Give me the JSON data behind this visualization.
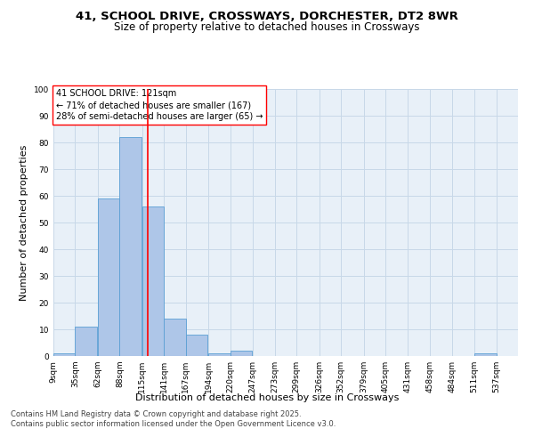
{
  "title_line1": "41, SCHOOL DRIVE, CROSSWAYS, DORCHESTER, DT2 8WR",
  "title_line2": "Size of property relative to detached houses in Crossways",
  "xlabel": "Distribution of detached houses by size in Crossways",
  "ylabel": "Number of detached properties",
  "bin_labels": [
    "9sqm",
    "35sqm",
    "62sqm",
    "88sqm",
    "115sqm",
    "141sqm",
    "167sqm",
    "194sqm",
    "220sqm",
    "247sqm",
    "273sqm",
    "299sqm",
    "326sqm",
    "352sqm",
    "379sqm",
    "405sqm",
    "431sqm",
    "458sqm",
    "484sqm",
    "511sqm",
    "537sqm"
  ],
  "bin_edges": [
    9,
    35,
    62,
    88,
    115,
    141,
    167,
    194,
    220,
    247,
    273,
    299,
    326,
    352,
    379,
    405,
    431,
    458,
    484,
    511,
    537
  ],
  "bar_heights": [
    1,
    11,
    59,
    82,
    56,
    14,
    8,
    1,
    2,
    0,
    0,
    0,
    0,
    0,
    0,
    0,
    0,
    0,
    0,
    1
  ],
  "bar_color": "#aec6e8",
  "bar_edge_color": "#5a9fd4",
  "vline_x": 121,
  "vline_color": "red",
  "annotation_line1": "41 SCHOOL DRIVE: 121sqm",
  "annotation_line2": "← 71% of detached houses are smaller (167)",
  "annotation_line3": "28% of semi-detached houses are larger (65) →",
  "box_edge_color": "red",
  "ylim": [
    0,
    100
  ],
  "yticks": [
    0,
    10,
    20,
    30,
    40,
    50,
    60,
    70,
    80,
    90,
    100
  ],
  "grid_color": "#c8d8e8",
  "background_color": "#e8f0f8",
  "footer_line1": "Contains HM Land Registry data © Crown copyright and database right 2025.",
  "footer_line2": "Contains public sector information licensed under the Open Government Licence v3.0.",
  "title_fontsize": 9.5,
  "subtitle_fontsize": 8.5,
  "ylabel_fontsize": 8,
  "xlabel_fontsize": 8,
  "annotation_fontsize": 7,
  "tick_fontsize": 6.5,
  "footer_fontsize": 6
}
